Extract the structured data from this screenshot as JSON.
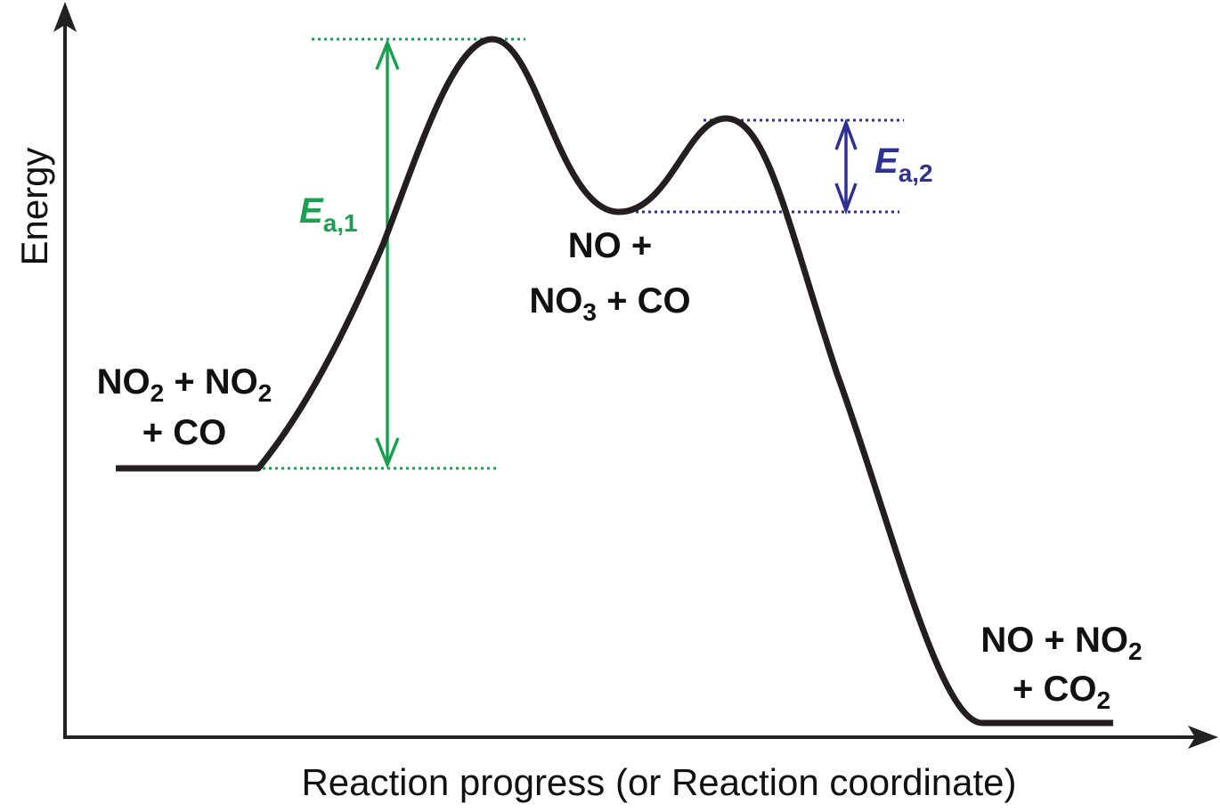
{
  "axes": {
    "y_label": "Energy",
    "x_label": "Reaction progress (or Reaction coordinate)"
  },
  "states": {
    "reactants": {
      "line1": [
        "NO",
        "2",
        " + NO",
        "2"
      ],
      "line2": [
        "+ CO"
      ]
    },
    "intermediate": {
      "line1": [
        "NO +"
      ],
      "line2": [
        "NO",
        "3",
        " + CO"
      ]
    },
    "products": {
      "line1": [
        "NO + NO",
        "2"
      ],
      "line2": [
        "+ CO",
        "2"
      ]
    }
  },
  "activation_energies": {
    "first": {
      "symbol": "E",
      "subscript": "a,1"
    },
    "second": {
      "symbol": "E",
      "subscript": "a,2"
    }
  }
}
